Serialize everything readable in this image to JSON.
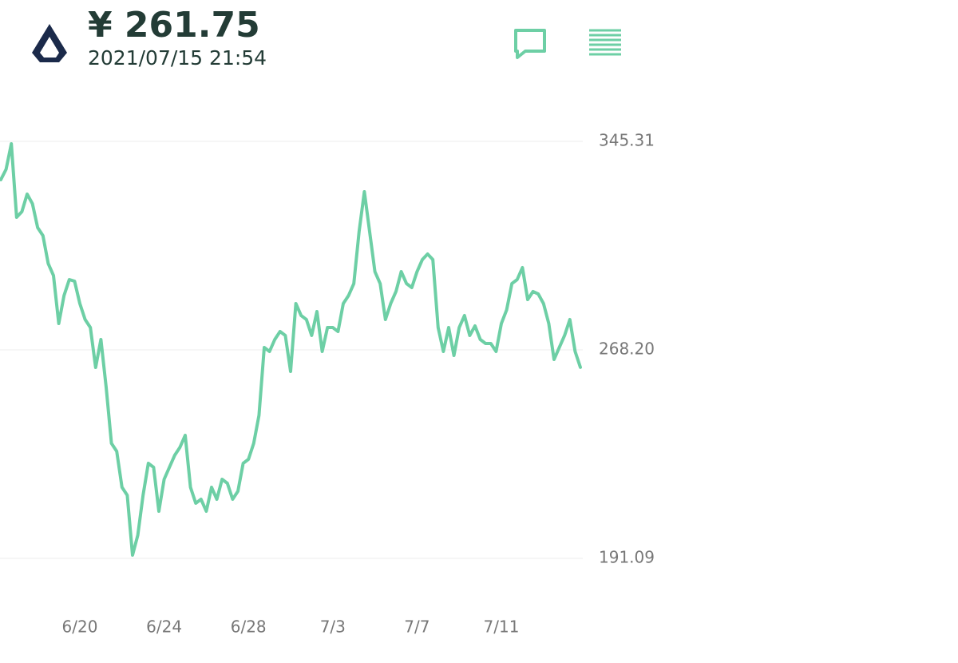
{
  "header": {
    "price": "¥ 261.75",
    "timestamp": "2021/07/15 21:54"
  },
  "chart_data": {
    "type": "line",
    "color": "#6dcfa5",
    "grid": true,
    "ylim": [
      191.09,
      345.31
    ],
    "yticks": [
      191.09,
      {
        "value": 268.2,
        "label": "268.20"
      },
      345.31
    ],
    "categories": [
      null,
      null,
      null,
      null,
      null,
      null,
      null,
      null,
      null,
      null,
      null,
      null,
      null,
      null,
      null,
      "6/20",
      null,
      null,
      null,
      null,
      null,
      null,
      null,
      null,
      null,
      null,
      null,
      null,
      null,
      null,
      null,
      "6/24",
      null,
      null,
      null,
      null,
      null,
      null,
      null,
      null,
      null,
      null,
      null,
      null,
      null,
      null,
      null,
      "6/28",
      null,
      null,
      null,
      null,
      null,
      null,
      null,
      null,
      null,
      null,
      null,
      null,
      null,
      null,
      null,
      "7/3",
      null,
      null,
      null,
      null,
      null,
      null,
      null,
      null,
      null,
      null,
      null,
      null,
      null,
      null,
      null,
      "7/7",
      null,
      null,
      null,
      null,
      null,
      null,
      null,
      null,
      null,
      null,
      null,
      null,
      null,
      null,
      null,
      "7/11",
      null,
      null,
      null,
      null,
      null,
      null,
      null,
      null,
      null,
      null,
      null,
      null,
      null,
      null,
      null
    ],
    "values": [
      331.13,
      334.97,
      344.42,
      317.24,
      319.31,
      325.81,
      322.27,
      313.4,
      310.45,
      300.11,
      295.68,
      277.95,
      288.29,
      294.2,
      293.61,
      285.34,
      279.43,
      276.47,
      261.7,
      272.04,
      254.31,
      233.63,
      230.68,
      217.38,
      214.43,
      192.27,
      199.66,
      214.43,
      226.25,
      224.77,
      208.52,
      220.34,
      224.77,
      229.2,
      232.16,
      236.59,
      217.38,
      211.48,
      212.95,
      208.52,
      217.38,
      212.95,
      220.34,
      218.86,
      212.95,
      215.91,
      226.25,
      227.72,
      233.63,
      243.97,
      269.09,
      267.61,
      272.04,
      274.99,
      273.52,
      260.22,
      285.34,
      280.9,
      279.43,
      273.52,
      282.38,
      267.61,
      276.47,
      276.47,
      274.99,
      285.34,
      288.29,
      292.72,
      311.92,
      326.7,
      311.92,
      297.15,
      292.72,
      279.43,
      285.34,
      289.77,
      297.15,
      292.72,
      291.24,
      297.15,
      301.58,
      303.65,
      301.58,
      276.47,
      267.61,
      276.47,
      266.13,
      276.47,
      280.9,
      273.52,
      277.06,
      272.04,
      270.56,
      270.56,
      267.61,
      277.95,
      282.97,
      292.72,
      294.2,
      298.63,
      286.81,
      289.77,
      288.88,
      285.34,
      277.95,
      264.65,
      269.09,
      273.52,
      279.43,
      267.61,
      261.75
    ]
  }
}
